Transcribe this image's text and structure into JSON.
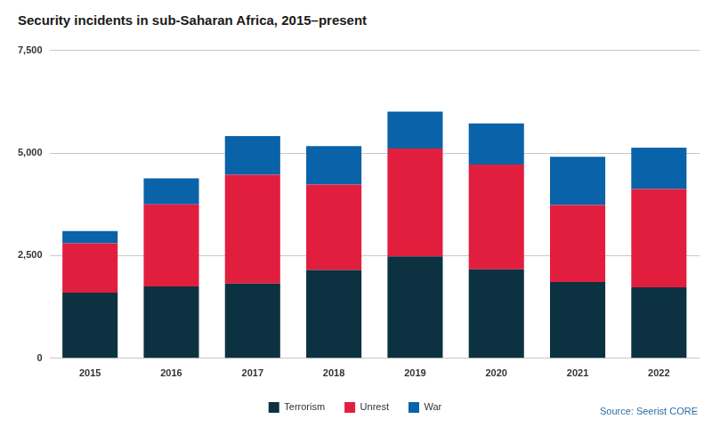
{
  "chart_data": {
    "type": "bar",
    "title": "Security incidents in sub-Saharan Africa, 2015–present",
    "source": "Source: Seerist CORE",
    "categories": [
      "2015",
      "2016",
      "2017",
      "2018",
      "2019",
      "2020",
      "2021",
      "2022"
    ],
    "series": [
      {
        "name": "Terrorism",
        "color": "#0c3242",
        "values": [
          1600,
          1750,
          1820,
          2150,
          2480,
          2170,
          1860,
          1730
        ]
      },
      {
        "name": "Unrest",
        "color": "#e21e3f",
        "values": [
          1200,
          2000,
          2650,
          2080,
          2630,
          2550,
          1870,
          2390
        ]
      },
      {
        "name": "War",
        "color": "#0a62a8",
        "values": [
          300,
          630,
          940,
          940,
          900,
          1000,
          1180,
          1010
        ]
      }
    ],
    "stacked": true,
    "ylim": [
      0,
      7500
    ],
    "yticks": [
      0,
      {
        "value": 2500,
        "label": "2,500"
      },
      {
        "value": 5000,
        "label": "5,000"
      },
      {
        "value": 7500,
        "label": "7,500"
      }
    ],
    "grid": true,
    "legend": "bottom"
  }
}
